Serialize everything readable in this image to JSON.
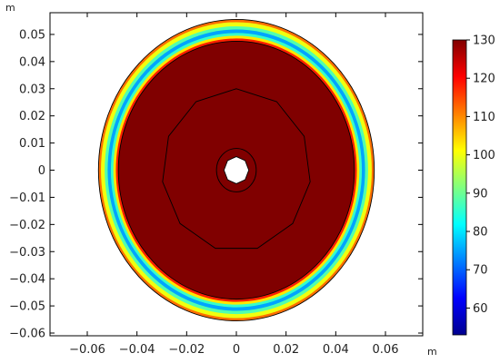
{
  "chart_data": {
    "type": "heatmap",
    "title": "",
    "xlabel": "m",
    "ylabel": "m",
    "xlim": [
      -0.075,
      0.075
    ],
    "ylim": [
      -0.061,
      0.058
    ],
    "x_ticks": [
      -0.06,
      -0.04,
      -0.02,
      0,
      0.02,
      0.04,
      0.06
    ],
    "x_tick_labels": [
      "−0.06",
      "−0.04",
      "−0.02",
      "0",
      "0.02",
      "0.04",
      "0.06"
    ],
    "y_ticks": [
      0.05,
      0.04,
      0.03,
      0.02,
      0.01,
      0,
      -0.01,
      -0.02,
      -0.03,
      -0.04,
      -0.05,
      -0.06
    ],
    "y_tick_labels": [
      "0.05",
      "0.04",
      "0.03",
      "0.02",
      "0.01",
      "0",
      "−0.01",
      "−0.02",
      "−0.03",
      "−0.04",
      "−0.05",
      "−0.06"
    ],
    "grid": false,
    "colorbar": {
      "min": 53,
      "max": 130,
      "ticks": [
        130,
        120,
        110,
        100,
        90,
        80,
        70,
        60
      ],
      "tick_labels": [
        "130",
        "120",
        "110",
        "100",
        "90",
        "80",
        "70",
        "60"
      ]
    },
    "rings": [
      {
        "r_outer": 0.0555,
        "r_inner": 0.0545,
        "value": 112
      },
      {
        "r_outer": 0.0545,
        "r_inner": 0.053,
        "value": 100
      },
      {
        "r_outer": 0.053,
        "r_inner": 0.0518,
        "value": 88
      },
      {
        "r_outer": 0.0518,
        "r_inner": 0.0505,
        "value": 75
      },
      {
        "r_outer": 0.0505,
        "r_inner": 0.0495,
        "value": 86
      },
      {
        "r_outer": 0.0495,
        "r_inner": 0.0485,
        "value": 103
      },
      {
        "r_outer": 0.0485,
        "r_inner": 0.0475,
        "value": 118
      },
      {
        "r_outer": 0.0475,
        "r_inner": 0.0,
        "value": 130
      }
    ],
    "boundaries": [
      {
        "shape": "circle",
        "r": 0.0555
      },
      {
        "shape": "circle",
        "r": 0.0475
      },
      {
        "shape": "polygon",
        "r": 0.03,
        "sides": 11
      },
      {
        "shape": "circle",
        "r": 0.008
      },
      {
        "shape": "polygon",
        "r": 0.005,
        "sides": 8
      }
    ]
  }
}
